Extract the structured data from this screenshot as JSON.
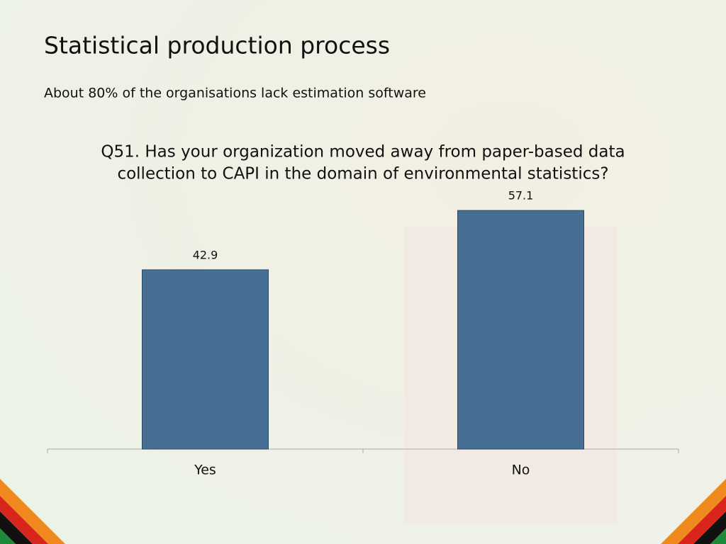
{
  "slide": {
    "title": "Statistical production process",
    "subtitle": "About 80% of the organisations lack estimation software"
  },
  "chart_data": {
    "type": "bar",
    "title": [
      "Q51. Has your organization moved away from paper-based data",
      "collection to CAPI in the domain of environmental statistics?"
    ],
    "categories": [
      "Yes",
      "No"
    ],
    "values": [
      42.9,
      57.1
    ],
    "color": "#466f93",
    "ylim": [
      0,
      60
    ]
  }
}
